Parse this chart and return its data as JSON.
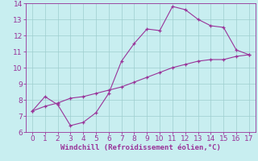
{
  "xlabel": "Windchill (Refroidissement éolien,°C)",
  "line1_x": [
    0,
    1,
    2,
    3,
    4,
    5,
    6,
    7,
    8,
    9,
    10,
    11,
    12,
    13,
    14,
    15,
    16,
    17
  ],
  "line1_y": [
    7.3,
    8.2,
    7.7,
    6.4,
    6.6,
    7.2,
    8.4,
    10.4,
    11.5,
    12.4,
    12.3,
    13.8,
    13.6,
    13.0,
    12.6,
    12.5,
    11.1,
    10.8
  ],
  "line2_x": [
    0,
    1,
    2,
    3,
    4,
    5,
    6,
    7,
    8,
    9,
    10,
    11,
    12,
    13,
    14,
    15,
    16,
    17
  ],
  "line2_y": [
    7.3,
    7.6,
    7.8,
    8.1,
    8.2,
    8.4,
    8.6,
    8.8,
    9.1,
    9.4,
    9.7,
    10.0,
    10.2,
    10.4,
    10.5,
    10.5,
    10.7,
    10.8
  ],
  "line_color": "#993399",
  "marker": "+",
  "bg_color": "#c8eef0",
  "grid_color": "#9ecece",
  "xlim": [
    -0.5,
    17.5
  ],
  "ylim": [
    6,
    14
  ],
  "xticks": [
    0,
    1,
    2,
    3,
    4,
    5,
    6,
    7,
    8,
    9,
    10,
    11,
    12,
    13,
    14,
    15,
    16,
    17
  ],
  "yticks": [
    6,
    7,
    8,
    9,
    10,
    11,
    12,
    13,
    14
  ],
  "tick_color": "#993399",
  "label_color": "#993399",
  "fontsize_tick": 6.5,
  "fontsize_label": 6.5
}
